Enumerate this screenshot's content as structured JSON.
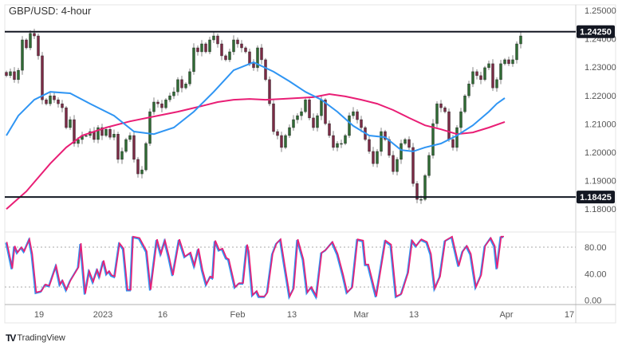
{
  "chart_data": {
    "type": "candlestick",
    "title": "GBP/USD: 4-hour",
    "ylim": [
      1.1775,
      1.2525
    ],
    "y_ticks": [
      "1.25000",
      "1.24000",
      "1.23000",
      "1.22000",
      "1.21000",
      "1.20000",
      "1.19000",
      "1.18000"
    ],
    "x_ticks": [
      "19",
      "2023",
      "16",
      "Feb",
      "13",
      "Mar",
      "13",
      "Apr",
      "17"
    ],
    "horizontal_levels": [
      {
        "value": 1.2425,
        "label": "1.24250"
      },
      {
        "value": 1.18425,
        "label": "1.18425"
      }
    ],
    "closes": [
      1.227,
      1.2284,
      1.2256,
      1.2289,
      1.2396,
      1.2368,
      1.2419,
      1.241,
      1.234,
      1.2185,
      1.2171,
      1.2199,
      1.2185,
      1.2171,
      1.2157,
      1.2087,
      1.2115,
      1.2031,
      1.2045,
      1.2059,
      1.2059,
      1.2073,
      1.2045,
      1.2087,
      1.2059,
      1.2081,
      1.2053,
      1.2064,
      1.1975,
      1.2003,
      1.2045,
      1.2059,
      1.1975,
      1.1924,
      1.1938,
      1.2031,
      1.2143,
      1.2177,
      1.2171,
      1.2157,
      1.2185,
      1.2199,
      1.2213,
      1.2256,
      1.2227,
      1.2241,
      1.2284,
      1.2368,
      1.2354,
      1.2382,
      1.2354,
      1.2396,
      1.241,
      1.2382,
      1.234,
      1.2326,
      1.2354,
      1.2396,
      1.2382,
      1.2368,
      1.2354,
      1.2312,
      1.2298,
      1.2368,
      1.2326,
      1.2256,
      1.2171,
      1.2073,
      1.2059,
      1.2017,
      1.2059,
      1.2087,
      1.2115,
      1.2129,
      1.2143,
      1.2185,
      1.2121,
      1.2087,
      1.2129,
      1.2185,
      1.2101,
      1.2059,
      1.2017,
      1.2031,
      1.2031,
      1.2059,
      1.2129,
      1.2143,
      1.2115,
      1.2087,
      1.2045,
      1.2003,
      1.196,
      1.2003,
      1.2073,
      1.2045,
      1.1989,
      1.1932,
      1.1975,
      1.2031,
      1.2045,
      1.2017,
      1.189,
      1.1834,
      1.1834,
      1.1918,
      1.1989,
      1.2101,
      1.2171,
      1.2157,
      1.2143,
      1.2045,
      1.2017,
      1.2087,
      1.2143,
      1.2199,
      1.2241,
      1.2284,
      1.227,
      1.2256,
      1.2298,
      1.2312,
      1.2227,
      1.2256,
      1.2312,
      1.2326,
      1.2312,
      1.2326,
      1.2382,
      1.241
    ],
    "ma_fast": [
      [
        0,
        1.2059
      ],
      [
        3,
        1.2129
      ],
      [
        7,
        1.2185
      ],
      [
        11,
        1.2213
      ],
      [
        16,
        1.2208
      ],
      [
        21,
        1.2171
      ],
      [
        27,
        1.2129
      ],
      [
        32,
        1.2073
      ],
      [
        37,
        1.2064
      ],
      [
        42,
        1.2087
      ],
      [
        47,
        1.2143
      ],
      [
        52,
        1.2213
      ],
      [
        57,
        1.2289
      ],
      [
        62,
        1.2317
      ],
      [
        67,
        1.2284
      ],
      [
        71,
        1.225
      ],
      [
        75,
        1.2213
      ],
      [
        79,
        1.2185
      ],
      [
        83,
        1.2143
      ],
      [
        87,
        1.2093
      ],
      [
        91,
        1.2059
      ],
      [
        95,
        1.2053
      ],
      [
        99,
        1.2008
      ],
      [
        102,
        1.2003
      ],
      [
        105,
        1.2017
      ],
      [
        109,
        1.2031
      ],
      [
        113,
        1.2059
      ],
      [
        117,
        1.2095
      ],
      [
        121,
        1.2143
      ],
      [
        123,
        1.2171
      ],
      [
        125,
        1.2191
      ]
    ],
    "ma_slow": [
      [
        0,
        1.18
      ],
      [
        5,
        1.1862
      ],
      [
        11,
        1.196
      ],
      [
        15,
        1.2017
      ],
      [
        19,
        1.2059
      ],
      [
        25,
        1.2087
      ],
      [
        31,
        1.2109
      ],
      [
        37,
        1.2126
      ],
      [
        43,
        1.2143
      ],
      [
        49,
        1.2163
      ],
      [
        53,
        1.2177
      ],
      [
        57,
        1.2185
      ],
      [
        61,
        1.2188
      ],
      [
        65,
        1.2185
      ],
      [
        69,
        1.2188
      ],
      [
        73,
        1.2191
      ],
      [
        77,
        1.2194
      ],
      [
        81,
        1.2205
      ],
      [
        85,
        1.2197
      ],
      [
        89,
        1.2185
      ],
      [
        93,
        1.2171
      ],
      [
        97,
        1.2149
      ],
      [
        101,
        1.2121
      ],
      [
        105,
        1.2095
      ],
      [
        109,
        1.2081
      ],
      [
        113,
        1.2064
      ],
      [
        117,
        1.207
      ],
      [
        121,
        1.2087
      ],
      [
        125,
        1.2107
      ]
    ],
    "stochastic": {
      "ylim": [
        0,
        100
      ],
      "y_ticks": [
        "80.00",
        "40.00",
        "0.00"
      ],
      "levels": [
        80,
        20
      ],
      "points": [
        [
          0.1,
          88
        ],
        [
          1.5,
          48
        ],
        [
          2.1,
          82
        ],
        [
          2.8,
          72
        ],
        [
          3.8,
          80
        ],
        [
          4.5,
          74
        ],
        [
          5.8,
          92
        ],
        [
          6.5,
          70
        ],
        [
          7.5,
          12
        ],
        [
          8.8,
          14
        ],
        [
          9.8,
          24
        ],
        [
          10.8,
          22
        ],
        [
          12.5,
          52
        ],
        [
          13.5,
          24
        ],
        [
          14.1,
          30
        ],
        [
          15.1,
          16
        ],
        [
          16.1,
          30
        ],
        [
          18.1,
          50
        ],
        [
          18.7,
          86
        ],
        [
          19.8,
          10
        ],
        [
          20.8,
          44
        ],
        [
          21.8,
          28
        ],
        [
          22.8,
          46
        ],
        [
          23.4,
          36
        ],
        [
          24.4,
          60
        ],
        [
          25.2,
          40
        ],
        [
          25.8,
          44
        ],
        [
          26.4,
          38
        ],
        [
          27.2,
          36
        ],
        [
          28.4,
          86
        ],
        [
          29.4,
          78
        ],
        [
          30.4,
          16
        ],
        [
          31.2,
          16
        ],
        [
          31.8,
          96
        ],
        [
          33.4,
          94
        ],
        [
          35.2,
          74
        ],
        [
          36.2,
          16
        ],
        [
          37.8,
          92
        ],
        [
          38.8,
          70
        ],
        [
          39.8,
          90
        ],
        [
          40.8,
          66
        ],
        [
          41.8,
          38
        ],
        [
          43.4,
          92
        ],
        [
          44.8,
          66
        ],
        [
          46.2,
          72
        ],
        [
          47.2,
          52
        ],
        [
          48.2,
          78
        ],
        [
          49.2,
          46
        ],
        [
          50.2,
          24
        ],
        [
          51.2,
          36
        ],
        [
          51.8,
          34
        ],
        [
          52.4,
          90
        ],
        [
          53.4,
          76
        ],
        [
          54.2,
          78
        ],
        [
          55.2,
          64
        ],
        [
          55.8,
          62
        ],
        [
          57.4,
          20
        ],
        [
          58.4,
          26
        ],
        [
          59.4,
          26
        ],
        [
          60.4,
          84
        ],
        [
          60.8,
          74
        ],
        [
          61.8,
          8
        ],
        [
          62.8,
          14
        ],
        [
          63.4,
          6
        ],
        [
          64.8,
          6
        ],
        [
          65.5,
          12
        ],
        [
          66.8,
          70
        ],
        [
          67.8,
          86
        ],
        [
          68.8,
          92
        ],
        [
          69.8,
          54
        ],
        [
          71.1,
          6
        ],
        [
          72.1,
          18
        ],
        [
          73.1,
          92
        ],
        [
          74.5,
          62
        ],
        [
          75.5,
          12
        ],
        [
          76.5,
          20
        ],
        [
          77.8,
          6
        ],
        [
          79.1,
          72
        ],
        [
          80.1,
          76
        ],
        [
          81.8,
          88
        ],
        [
          83.1,
          70
        ],
        [
          84.5,
          38
        ],
        [
          85.5,
          12
        ],
        [
          86.8,
          20
        ],
        [
          88.1,
          92
        ],
        [
          89.5,
          90
        ],
        [
          90.1,
          54
        ],
        [
          90.8,
          54
        ],
        [
          92.8,
          6
        ],
        [
          95.1,
          90
        ],
        [
          96.5,
          84
        ],
        [
          97.8,
          6
        ],
        [
          99.1,
          10
        ],
        [
          100.8,
          42
        ],
        [
          101.8,
          90
        ],
        [
          102.8,
          82
        ],
        [
          104.1,
          92
        ],
        [
          105.5,
          88
        ],
        [
          106.5,
          70
        ],
        [
          107.5,
          18
        ],
        [
          108.8,
          36
        ],
        [
          110.1,
          90
        ],
        [
          111.8,
          96
        ],
        [
          113.5,
          52
        ],
        [
          114.5,
          74
        ],
        [
          115.5,
          82
        ],
        [
          116.5,
          70
        ],
        [
          117.8,
          20
        ],
        [
          119.1,
          38
        ],
        [
          120.1,
          82
        ],
        [
          121.5,
          94
        ],
        [
          122.5,
          82
        ],
        [
          123.1,
          48
        ],
        [
          124.1,
          96
        ],
        [
          124.8,
          96
        ]
      ]
    },
    "colors": {
      "up": "#2f6b34",
      "down": "#7b2a45",
      "wick": "#9a9a9a",
      "ma_fast": "#2f95f3",
      "ma_slow": "#e91e75",
      "level": "#131722"
    },
    "grid": false
  },
  "branding": {
    "name": "TradingView",
    "logo": "TV"
  }
}
